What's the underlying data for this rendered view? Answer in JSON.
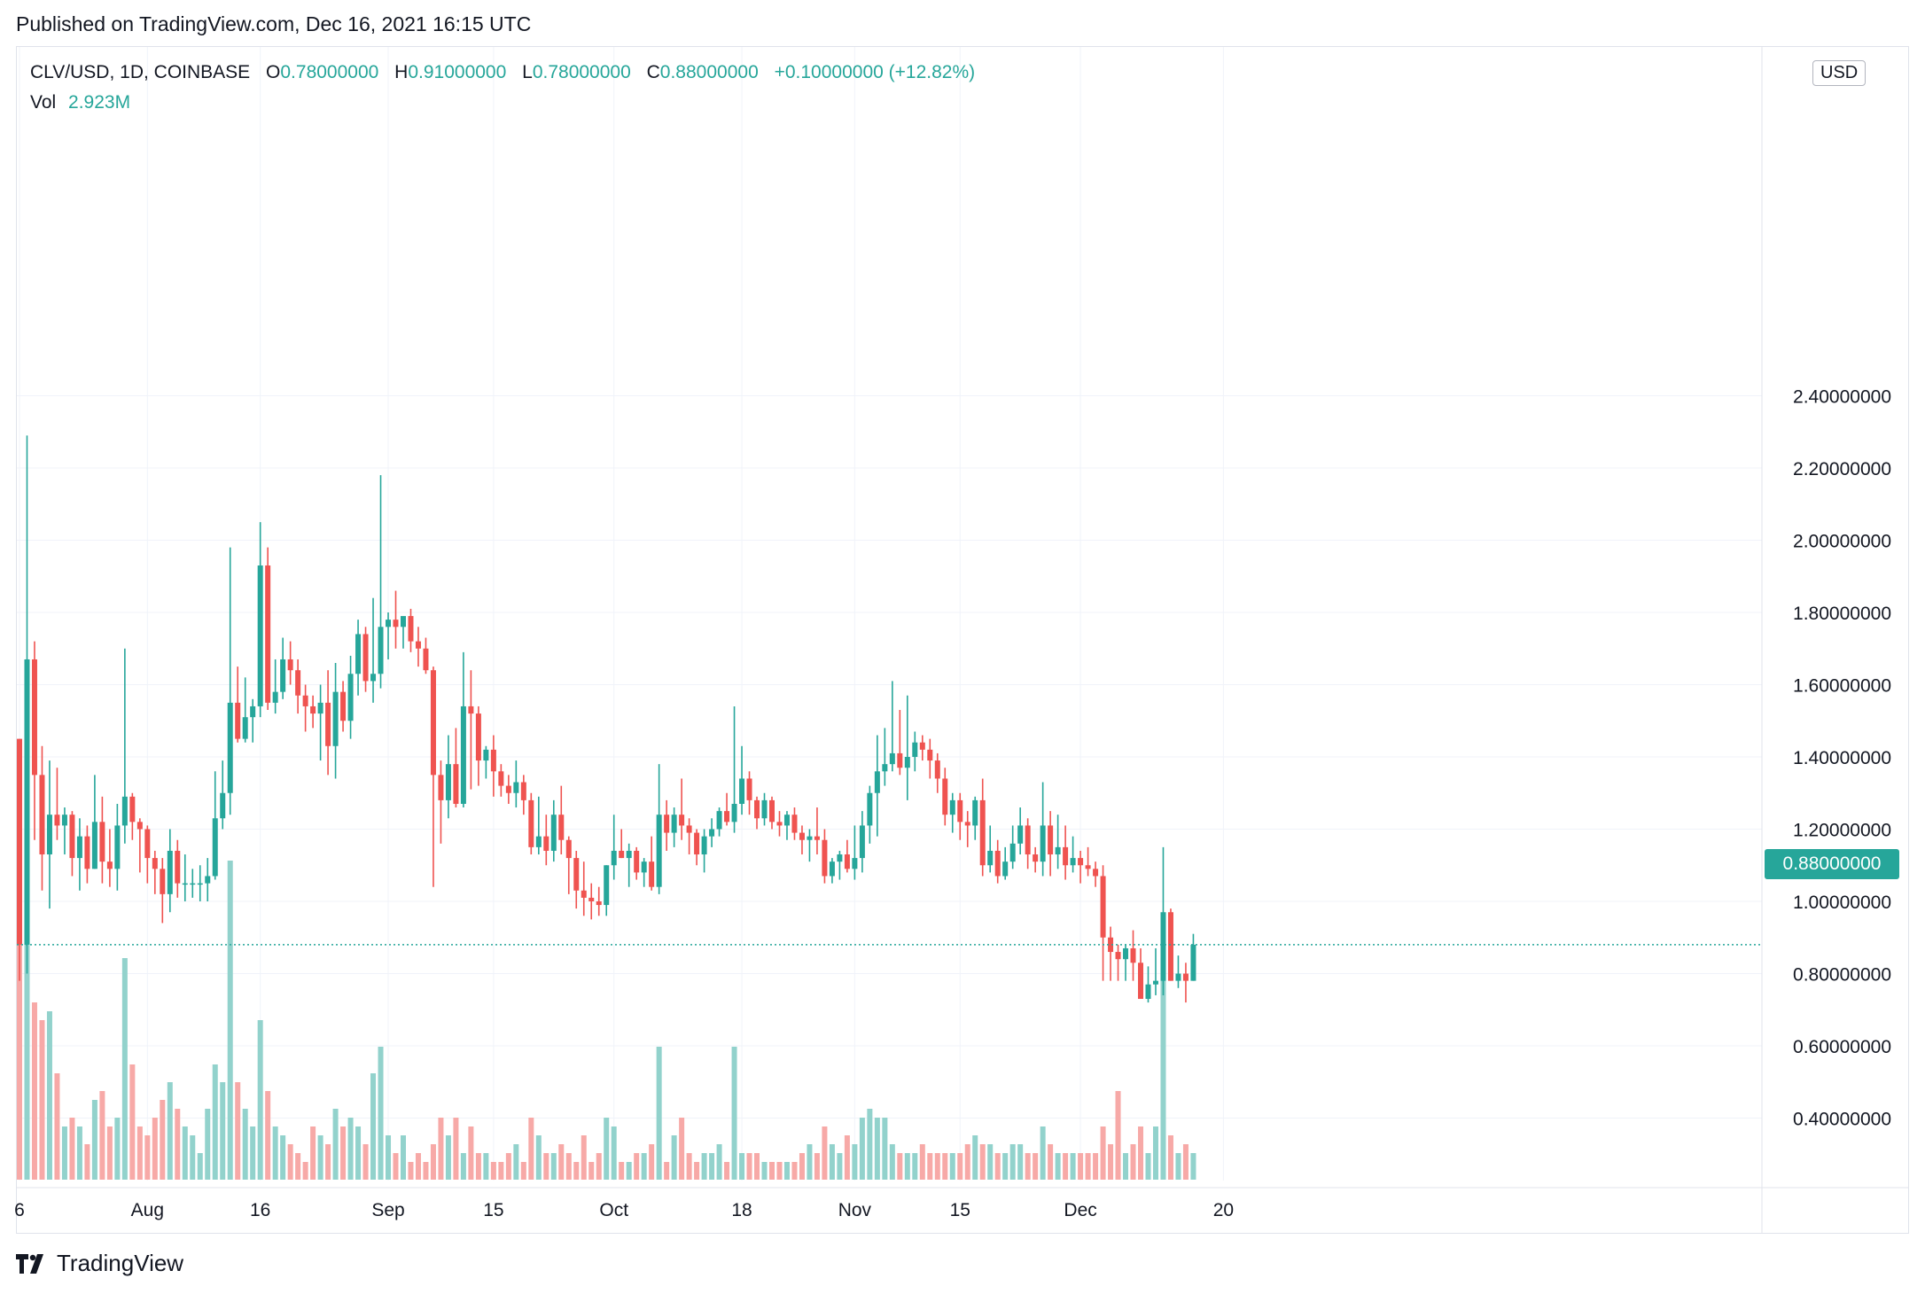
{
  "published": "Published on TradingView.com, Dec 16, 2021 16:15 UTC",
  "legend": {
    "symbol": "CLV/USD, 1D, COINBASE",
    "o_label": "O",
    "o": "0.78000000",
    "h_label": "H",
    "h": "0.91000000",
    "l_label": "L",
    "l": "0.78000000",
    "c_label": "C",
    "c": "0.88000000",
    "change": "+0.10000000 (+12.82%)",
    "vol_label": "Vol",
    "vol": "2.923M"
  },
  "currency": "USD",
  "last_price": "0.88000000",
  "brand": "TradingView",
  "colors": {
    "up": "#26a69a",
    "down": "#ef5350",
    "up_vol": "#92d2cc",
    "down_vol": "#f7a9a7"
  },
  "chart_data": {
    "type": "candlestick",
    "interval": "1D",
    "yaxis_ticks": [
      "2.40000000",
      "2.20000000",
      "2.00000000",
      "1.80000000",
      "1.60000000",
      "1.40000000",
      "1.20000000",
      "1.00000000",
      "0.80000000",
      "0.60000000",
      "0.40000000"
    ],
    "xaxis_ticks": [
      {
        "label": "6",
        "index": 0
      },
      {
        "label": "Aug",
        "index": 17
      },
      {
        "label": "16",
        "index": 32
      },
      {
        "label": "Sep",
        "index": 49
      },
      {
        "label": "15",
        "index": 63
      },
      {
        "label": "Oct",
        "index": 79
      },
      {
        "label": "18",
        "index": 96
      },
      {
        "label": "Nov",
        "index": 111
      },
      {
        "label": "15",
        "index": 125
      },
      {
        "label": "Dec",
        "index": 141
      },
      {
        "label": "20",
        "index": 160
      }
    ],
    "ylim": [
      0.23,
      2.49
    ],
    "candles": [
      [
        1.45,
        1.45,
        0.78,
        0.88,
        0.57
      ],
      [
        0.88,
        2.29,
        0.8,
        1.67,
        0.8
      ],
      [
        1.67,
        1.72,
        1.17,
        1.35,
        0.43
      ],
      [
        1.35,
        1.43,
        1.03,
        1.13,
        0.41
      ],
      [
        1.13,
        1.39,
        0.98,
        1.24,
        0.42
      ],
      [
        1.24,
        1.37,
        1.17,
        1.21,
        0.35
      ],
      [
        1.21,
        1.26,
        1.13,
        1.24,
        0.29
      ],
      [
        1.24,
        1.25,
        1.07,
        1.12,
        0.3
      ],
      [
        1.12,
        1.23,
        1.03,
        1.18,
        0.29
      ],
      [
        1.18,
        1.21,
        1.05,
        1.09,
        0.27
      ],
      [
        1.09,
        1.35,
        1.09,
        1.22,
        0.32
      ],
      [
        1.22,
        1.29,
        1.05,
        1.11,
        0.33
      ],
      [
        1.11,
        1.2,
        1.04,
        1.09,
        0.29
      ],
      [
        1.09,
        1.27,
        1.03,
        1.21,
        0.3
      ],
      [
        1.21,
        1.7,
        1.16,
        1.29,
        0.48
      ],
      [
        1.29,
        1.3,
        1.17,
        1.22,
        0.36
      ],
      [
        1.22,
        1.23,
        1.08,
        1.2,
        0.29
      ],
      [
        1.2,
        1.21,
        1.05,
        1.12,
        0.28
      ],
      [
        1.12,
        1.14,
        1.02,
        1.09,
        0.3
      ],
      [
        1.09,
        1.12,
        0.94,
        1.02,
        0.32
      ],
      [
        1.02,
        1.2,
        0.97,
        1.14,
        0.34
      ],
      [
        1.14,
        1.17,
        1.01,
        1.05,
        0.31
      ],
      [
        1.05,
        1.13,
        1.0,
        1.05,
        0.29
      ],
      [
        1.05,
        1.09,
        1.01,
        1.05,
        0.28
      ],
      [
        1.05,
        1.1,
        1.0,
        1.05,
        0.26
      ],
      [
        1.05,
        1.12,
        1.0,
        1.07,
        0.31
      ],
      [
        1.07,
        1.36,
        1.06,
        1.23,
        0.36
      ],
      [
        1.23,
        1.39,
        1.2,
        1.3,
        0.34
      ],
      [
        1.3,
        1.98,
        1.24,
        1.55,
        0.59
      ],
      [
        1.55,
        1.65,
        1.44,
        1.45,
        0.34
      ],
      [
        1.45,
        1.62,
        1.44,
        1.51,
        0.31
      ],
      [
        1.51,
        1.56,
        1.44,
        1.54,
        0.29
      ],
      [
        1.54,
        2.05,
        1.51,
        1.93,
        0.41
      ],
      [
        1.93,
        1.98,
        1.53,
        1.55,
        0.33
      ],
      [
        1.55,
        1.67,
        1.52,
        1.58,
        0.29
      ],
      [
        1.58,
        1.73,
        1.56,
        1.67,
        0.28
      ],
      [
        1.67,
        1.72,
        1.6,
        1.64,
        0.27
      ],
      [
        1.64,
        1.67,
        1.52,
        1.57,
        0.26
      ],
      [
        1.57,
        1.6,
        1.47,
        1.54,
        0.25
      ],
      [
        1.54,
        1.57,
        1.48,
        1.52,
        0.29
      ],
      [
        1.52,
        1.6,
        1.39,
        1.55,
        0.28
      ],
      [
        1.55,
        1.64,
        1.35,
        1.43,
        0.27
      ],
      [
        1.43,
        1.66,
        1.34,
        1.58,
        0.31
      ],
      [
        1.58,
        1.61,
        1.47,
        1.5,
        0.29
      ],
      [
        1.5,
        1.68,
        1.45,
        1.63,
        0.3
      ],
      [
        1.63,
        1.78,
        1.57,
        1.74,
        0.29
      ],
      [
        1.74,
        1.76,
        1.58,
        1.61,
        0.27
      ],
      [
        1.61,
        1.84,
        1.55,
        1.63,
        0.35
      ],
      [
        1.63,
        2.18,
        1.59,
        1.76,
        0.38
      ],
      [
        1.76,
        1.8,
        1.67,
        1.78,
        0.28
      ],
      [
        1.78,
        1.86,
        1.7,
        1.76,
        0.26
      ],
      [
        1.76,
        1.78,
        1.7,
        1.79,
        0.28
      ],
      [
        1.79,
        1.81,
        1.69,
        1.72,
        0.25
      ],
      [
        1.72,
        1.76,
        1.65,
        1.7,
        0.26
      ],
      [
        1.7,
        1.73,
        1.63,
        1.64,
        0.25
      ],
      [
        1.64,
        1.65,
        1.04,
        1.35,
        0.27
      ],
      [
        1.35,
        1.39,
        1.16,
        1.28,
        0.3
      ],
      [
        1.28,
        1.46,
        1.23,
        1.38,
        0.28
      ],
      [
        1.38,
        1.48,
        1.26,
        1.27,
        0.3
      ],
      [
        1.27,
        1.69,
        1.26,
        1.54,
        0.26
      ],
      [
        1.54,
        1.64,
        1.31,
        1.52,
        0.29
      ],
      [
        1.52,
        1.54,
        1.32,
        1.39,
        0.26
      ],
      [
        1.39,
        1.43,
        1.34,
        1.42,
        0.26
      ],
      [
        1.42,
        1.46,
        1.29,
        1.36,
        0.25
      ],
      [
        1.36,
        1.38,
        1.29,
        1.32,
        0.25
      ],
      [
        1.32,
        1.35,
        1.27,
        1.3,
        0.26
      ],
      [
        1.3,
        1.39,
        1.26,
        1.33,
        0.27
      ],
      [
        1.33,
        1.35,
        1.24,
        1.28,
        0.25
      ],
      [
        1.28,
        1.3,
        1.13,
        1.15,
        0.3
      ],
      [
        1.15,
        1.29,
        1.13,
        1.18,
        0.28
      ],
      [
        1.18,
        1.24,
        1.1,
        1.14,
        0.26
      ],
      [
        1.14,
        1.28,
        1.11,
        1.24,
        0.26
      ],
      [
        1.24,
        1.32,
        1.13,
        1.17,
        0.27
      ],
      [
        1.17,
        1.18,
        1.02,
        1.12,
        0.26
      ],
      [
        1.12,
        1.14,
        0.98,
        1.03,
        0.25
      ],
      [
        1.03,
        1.11,
        0.96,
        1.01,
        0.28
      ],
      [
        1.01,
        1.05,
        0.95,
        1.0,
        0.25
      ],
      [
        1.0,
        1.04,
        0.96,
        0.99,
        0.26
      ],
      [
        0.99,
        1.1,
        0.96,
        1.1,
        0.3
      ],
      [
        1.1,
        1.24,
        1.06,
        1.14,
        0.29
      ],
      [
        1.14,
        1.2,
        1.12,
        1.12,
        0.25
      ],
      [
        1.12,
        1.16,
        1.04,
        1.14,
        0.25
      ],
      [
        1.14,
        1.15,
        1.06,
        1.08,
        0.26
      ],
      [
        1.08,
        1.12,
        1.04,
        1.11,
        0.26
      ],
      [
        1.11,
        1.18,
        1.03,
        1.04,
        0.27
      ],
      [
        1.04,
        1.38,
        1.02,
        1.24,
        0.38
      ],
      [
        1.24,
        1.28,
        1.14,
        1.19,
        0.25
      ],
      [
        1.19,
        1.26,
        1.15,
        1.24,
        0.28
      ],
      [
        1.24,
        1.34,
        1.17,
        1.21,
        0.3
      ],
      [
        1.21,
        1.23,
        1.13,
        1.19,
        0.26
      ],
      [
        1.19,
        1.2,
        1.1,
        1.13,
        0.25
      ],
      [
        1.13,
        1.2,
        1.08,
        1.18,
        0.26
      ],
      [
        1.18,
        1.23,
        1.15,
        1.2,
        0.26
      ],
      [
        1.2,
        1.26,
        1.18,
        1.25,
        0.27
      ],
      [
        1.25,
        1.3,
        1.21,
        1.22,
        0.25
      ],
      [
        1.22,
        1.54,
        1.19,
        1.27,
        0.38
      ],
      [
        1.27,
        1.43,
        1.24,
        1.34,
        0.26
      ],
      [
        1.34,
        1.36,
        1.24,
        1.28,
        0.26
      ],
      [
        1.28,
        1.29,
        1.2,
        1.23,
        0.26
      ],
      [
        1.23,
        1.3,
        1.21,
        1.28,
        0.25
      ],
      [
        1.28,
        1.29,
        1.2,
        1.22,
        0.25
      ],
      [
        1.22,
        1.25,
        1.18,
        1.21,
        0.25
      ],
      [
        1.21,
        1.25,
        1.17,
        1.24,
        0.25
      ],
      [
        1.24,
        1.26,
        1.17,
        1.19,
        0.25
      ],
      [
        1.19,
        1.21,
        1.13,
        1.17,
        0.26
      ],
      [
        1.17,
        1.2,
        1.11,
        1.18,
        0.27
      ],
      [
        1.18,
        1.26,
        1.13,
        1.17,
        0.26
      ],
      [
        1.17,
        1.2,
        1.05,
        1.07,
        0.29
      ],
      [
        1.07,
        1.12,
        1.05,
        1.11,
        0.27
      ],
      [
        1.11,
        1.14,
        1.06,
        1.13,
        0.26
      ],
      [
        1.13,
        1.17,
        1.08,
        1.09,
        0.28
      ],
      [
        1.09,
        1.21,
        1.06,
        1.12,
        0.27
      ],
      [
        1.12,
        1.25,
        1.08,
        1.21,
        0.3
      ],
      [
        1.21,
        1.32,
        1.16,
        1.3,
        0.31
      ],
      [
        1.3,
        1.46,
        1.18,
        1.36,
        0.3
      ],
      [
        1.36,
        1.48,
        1.32,
        1.38,
        0.3
      ],
      [
        1.38,
        1.61,
        1.36,
        1.41,
        0.27
      ],
      [
        1.41,
        1.53,
        1.35,
        1.37,
        0.26
      ],
      [
        1.37,
        1.57,
        1.28,
        1.4,
        0.26
      ],
      [
        1.4,
        1.47,
        1.36,
        1.44,
        0.26
      ],
      [
        1.44,
        1.46,
        1.39,
        1.42,
        0.27
      ],
      [
        1.42,
        1.45,
        1.34,
        1.39,
        0.26
      ],
      [
        1.39,
        1.41,
        1.3,
        1.34,
        0.26
      ],
      [
        1.34,
        1.37,
        1.21,
        1.24,
        0.26
      ],
      [
        1.24,
        1.3,
        1.19,
        1.28,
        0.26
      ],
      [
        1.28,
        1.3,
        1.17,
        1.22,
        0.26
      ],
      [
        1.22,
        1.25,
        1.15,
        1.21,
        0.27
      ],
      [
        1.21,
        1.29,
        1.17,
        1.28,
        0.28
      ],
      [
        1.28,
        1.34,
        1.07,
        1.1,
        0.27
      ],
      [
        1.1,
        1.21,
        1.08,
        1.14,
        0.27
      ],
      [
        1.14,
        1.17,
        1.05,
        1.07,
        0.26
      ],
      [
        1.07,
        1.15,
        1.06,
        1.11,
        0.26
      ],
      [
        1.11,
        1.21,
        1.09,
        1.16,
        0.27
      ],
      [
        1.16,
        1.26,
        1.13,
        1.21,
        0.27
      ],
      [
        1.21,
        1.23,
        1.09,
        1.13,
        0.26
      ],
      [
        1.13,
        1.15,
        1.08,
        1.11,
        0.26
      ],
      [
        1.11,
        1.33,
        1.07,
        1.21,
        0.29
      ],
      [
        1.21,
        1.25,
        1.07,
        1.13,
        0.27
      ],
      [
        1.13,
        1.24,
        1.09,
        1.15,
        0.26
      ],
      [
        1.15,
        1.21,
        1.06,
        1.1,
        0.26
      ],
      [
        1.1,
        1.18,
        1.08,
        1.12,
        0.26
      ],
      [
        1.12,
        1.14,
        1.05,
        1.1,
        0.26
      ],
      [
        1.1,
        1.15,
        1.07,
        1.09,
        0.26
      ],
      [
        1.09,
        1.11,
        1.04,
        1.07,
        0.26
      ],
      [
        1.07,
        1.1,
        0.78,
        0.9,
        0.29
      ],
      [
        0.9,
        0.93,
        0.78,
        0.86,
        0.27
      ],
      [
        0.86,
        0.88,
        0.78,
        0.84,
        0.33
      ],
      [
        0.84,
        0.88,
        0.78,
        0.87,
        0.26
      ],
      [
        0.87,
        0.92,
        0.78,
        0.83,
        0.27
      ],
      [
        0.83,
        0.87,
        0.73,
        0.73,
        0.29
      ],
      [
        0.73,
        0.82,
        0.72,
        0.77,
        0.26
      ],
      [
        0.77,
        0.87,
        0.74,
        0.78,
        0.29
      ],
      [
        0.78,
        1.15,
        0.74,
        0.97,
        0.48
      ],
      [
        0.97,
        0.98,
        0.78,
        0.78,
        0.28
      ],
      [
        0.78,
        0.85,
        0.76,
        0.8,
        0.26
      ],
      [
        0.8,
        0.83,
        0.72,
        0.78,
        0.27
      ],
      [
        0.78,
        0.91,
        0.78,
        0.88,
        0.26
      ]
    ]
  }
}
